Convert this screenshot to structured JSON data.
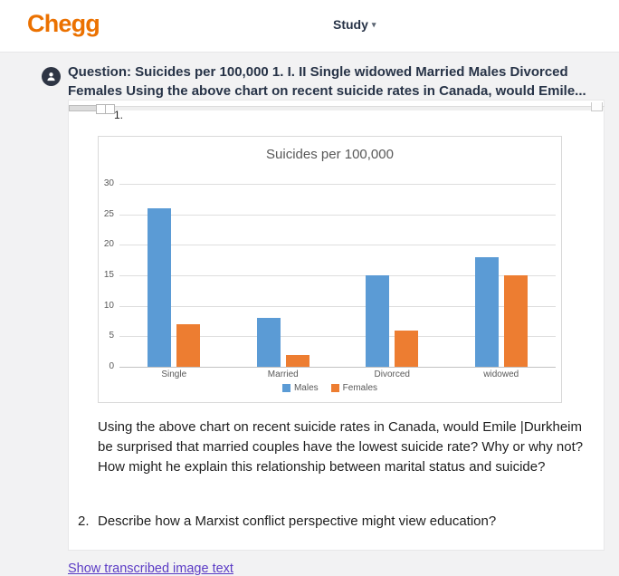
{
  "header": {
    "logo_text": "Chegg",
    "study_label": "Study",
    "caret": "▾"
  },
  "question": {
    "heading_lines": [
      "Question: Suicides per 100,000 1. I. II Single widowed Married Males Divorced",
      "Females Using the above chart on recent suicide rates in Canada, would Emile..."
    ]
  },
  "content": {
    "list_item_1_number": "1.",
    "paragraph_lines": [
      "Using the above chart on recent suicide rates in Canada, would Emile |Durkheim",
      "be surprised that married couples have the lowest suicide rate? Why or why not?",
      "How might he explain this relationship between marital status and suicide?"
    ],
    "item2_number": "2.",
    "item2_text": "Describe how a Marxist conflict perspective might view education?",
    "show_transcribed_link": "Show transcribed image text"
  },
  "chart_data": {
    "type": "bar",
    "title": "Suicides per 100,000",
    "categories": [
      "Single",
      "Married",
      "Divorced",
      "widowed"
    ],
    "series": [
      {
        "name": "Males",
        "color": "#5B9BD5",
        "values": [
          26,
          8,
          15,
          18
        ]
      },
      {
        "name": "Females",
        "color": "#ED7D31",
        "values": [
          7,
          2,
          6,
          15
        ]
      }
    ],
    "ylim": [
      0,
      30
    ],
    "yticks": [
      0,
      5,
      10,
      15,
      20,
      25,
      30
    ],
    "grid": true,
    "legend_position": "bottom"
  },
  "colors": {
    "brand_orange": "#EB7100",
    "heading_navy": "#273347",
    "bar_blue": "#5B9BD5",
    "bar_orange": "#ED7D31",
    "link_purple": "#5B3BC5",
    "chart_text_gray": "#595959"
  }
}
